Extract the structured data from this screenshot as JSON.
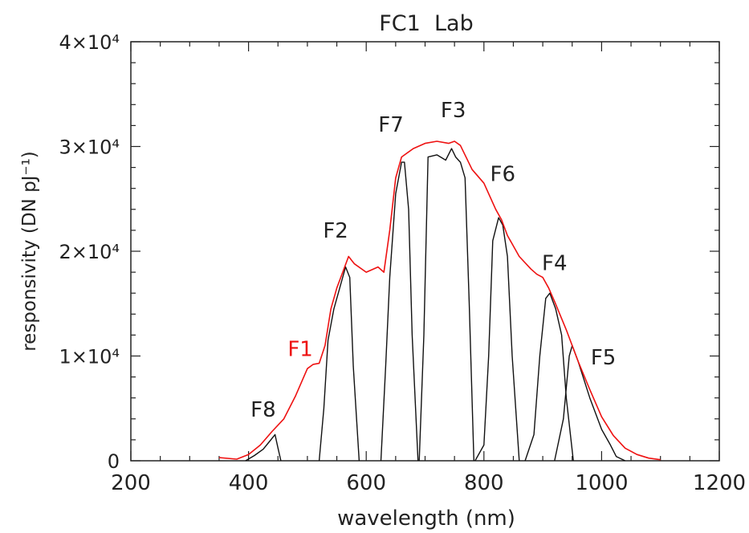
{
  "chart_data": {
    "type": "line",
    "title": "FC1  Lab",
    "xlabel": "wavelength (nm)",
    "ylabel": "responsivity (DN pJ⁻¹)",
    "xlim": [
      200,
      1200
    ],
    "ylim": [
      0,
      40000
    ],
    "grid": false,
    "x_tick_labels": [
      "200",
      "400",
      "600",
      "800",
      "1000",
      "1200"
    ],
    "x_tick_values": [
      200,
      400,
      600,
      800,
      1000,
      1200
    ],
    "y_tick_labels": [
      "0",
      "1×10⁴",
      "2×10⁴",
      "3×10⁴",
      "4×10⁴"
    ],
    "y_tick_values": [
      0,
      10000,
      20000,
      30000,
      40000
    ],
    "colors": {
      "clear_filter": "#ee1111",
      "bandpass": "#111111",
      "axes": "#222222"
    },
    "series": [
      {
        "name": "F1",
        "color": "#ee1111",
        "x": [
          350,
          380,
          400,
          420,
          440,
          460,
          480,
          500,
          510,
          520,
          530,
          540,
          550,
          560,
          570,
          580,
          600,
          620,
          630,
          640,
          650,
          660,
          680,
          700,
          720,
          740,
          750,
          760,
          780,
          800,
          820,
          830,
          840,
          860,
          880,
          890,
          900,
          910,
          920,
          940,
          960,
          980,
          1000,
          1020,
          1040,
          1060,
          1080,
          1100
        ],
        "y": [
          300,
          150,
          600,
          1500,
          2800,
          4000,
          6200,
          8800,
          9200,
          9300,
          11000,
          14500,
          16500,
          18000,
          19500,
          18800,
          18000,
          18500,
          18000,
          22000,
          27000,
          29000,
          29800,
          30300,
          30500,
          30300,
          30500,
          30100,
          27800,
          26500,
          24000,
          23000,
          21500,
          19500,
          18300,
          17800,
          17500,
          16500,
          15200,
          12500,
          9500,
          6800,
          4200,
          2400,
          1200,
          600,
          250,
          100
        ]
      },
      {
        "name": "F8",
        "color": "#111111",
        "x": [
          395,
          410,
          425,
          435,
          445,
          450,
          455
        ],
        "y": [
          0,
          500,
          1100,
          1800,
          2500,
          1200,
          0
        ]
      },
      {
        "name": "F2",
        "color": "#111111",
        "x": [
          520,
          528,
          535,
          545,
          555,
          565,
          572,
          578,
          588
        ],
        "y": [
          0,
          5000,
          11500,
          14500,
          16500,
          18500,
          17500,
          9000,
          0
        ]
      },
      {
        "name": "F7",
        "color": "#111111",
        "x": [
          625,
          633,
          640,
          650,
          660,
          665,
          672,
          678,
          688
        ],
        "y": [
          0,
          9000,
          17500,
          25500,
          28500,
          28500,
          24000,
          12000,
          0
        ]
      },
      {
        "name": "F3",
        "color": "#111111",
        "x": [
          690,
          698,
          705,
          720,
          735,
          745,
          752,
          760,
          768,
          775,
          783
        ],
        "y": [
          0,
          12000,
          29000,
          29200,
          28700,
          29800,
          29000,
          28500,
          27000,
          15000,
          0
        ]
      },
      {
        "name": "F6",
        "color": "#111111",
        "x": [
          785,
          800,
          808,
          815,
          825,
          832,
          840,
          848,
          860
        ],
        "y": [
          0,
          1500,
          10000,
          21000,
          23200,
          22500,
          19500,
          10000,
          0
        ]
      },
      {
        "name": "F4",
        "color": "#111111",
        "x": [
          870,
          885,
          895,
          905,
          912,
          922,
          932,
          940,
          952
        ],
        "y": [
          0,
          2500,
          10000,
          15500,
          16000,
          14500,
          12000,
          6000,
          0
        ]
      },
      {
        "name": "F5",
        "color": "#111111",
        "x": [
          920,
          935,
          945,
          950,
          960,
          980,
          1000,
          1015,
          1025,
          1040
        ],
        "y": [
          0,
          4000,
          10000,
          11000,
          9500,
          6000,
          3000,
          1500,
          400,
          0
        ]
      }
    ],
    "annotations": [
      {
        "text": "F1",
        "x": 488,
        "y": 10000,
        "color": "#ee1111"
      },
      {
        "text": "F8",
        "x": 425,
        "y": 4200,
        "color": "#222222"
      },
      {
        "text": "F2",
        "x": 548,
        "y": 21300,
        "color": "#222222"
      },
      {
        "text": "F7",
        "x": 642,
        "y": 31400,
        "color": "#222222"
      },
      {
        "text": "F3",
        "x": 748,
        "y": 32800,
        "color": "#222222"
      },
      {
        "text": "F6",
        "x": 832,
        "y": 26700,
        "color": "#222222"
      },
      {
        "text": "F4",
        "x": 920,
        "y": 18200,
        "color": "#222222"
      },
      {
        "text": "F5",
        "x": 1003,
        "y": 9200,
        "color": "#222222"
      }
    ]
  }
}
